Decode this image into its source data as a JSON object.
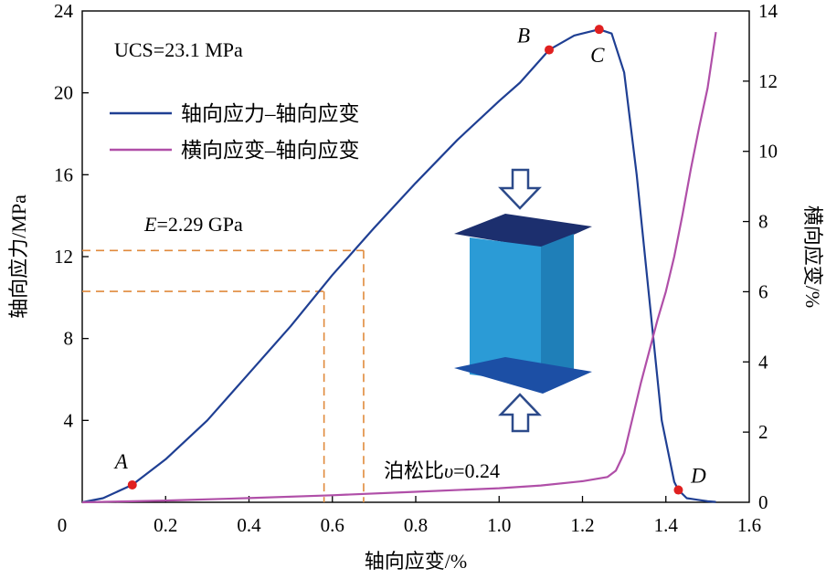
{
  "chart_data": {
    "type": "line",
    "xlabel": "轴向应变/%",
    "ylabel": "轴向应力/MPa",
    "y2label": "横向应变/%",
    "xlim": [
      0,
      1.6
    ],
    "ylim": [
      0,
      24
    ],
    "y2lim": [
      0,
      14
    ],
    "x_ticks": [
      "0",
      "0.2",
      "0.4",
      "0.6",
      "0.8",
      "1.0",
      "1.2",
      "1.4",
      "1.6"
    ],
    "y_ticks": [
      "4",
      "8",
      "12",
      "16",
      "20",
      "24"
    ],
    "y2_ticks": [
      "0",
      "2",
      "4",
      "6",
      "8",
      "10",
      "12",
      "14"
    ],
    "grid": false,
    "legend_position": "top-left",
    "series": [
      {
        "name": "轴向应力–轴向应变",
        "axis": "left",
        "color": "#1f3f93",
        "x": [
          0,
          0.05,
          0.12,
          0.2,
          0.3,
          0.4,
          0.5,
          0.6,
          0.7,
          0.8,
          0.9,
          1.0,
          1.05,
          1.12,
          1.18,
          1.24,
          1.27,
          1.3,
          1.33,
          1.36,
          1.39,
          1.42,
          1.43,
          1.45,
          1.5,
          1.52
        ],
        "y": [
          0,
          0.2,
          0.85,
          2.1,
          4.0,
          6.3,
          8.6,
          11.1,
          13.4,
          15.6,
          17.7,
          19.6,
          20.5,
          22.1,
          22.8,
          23.1,
          22.9,
          21.0,
          16.0,
          10.0,
          4.0,
          1.0,
          0.6,
          0.2,
          0.05,
          0.02
        ]
      },
      {
        "name": "横向应变–轴向应变",
        "axis": "right",
        "color": "#b04fa8",
        "x": [
          0,
          0.2,
          0.4,
          0.6,
          0.8,
          1.0,
          1.1,
          1.2,
          1.26,
          1.28,
          1.3,
          1.32,
          1.34,
          1.36,
          1.38,
          1.4,
          1.42,
          1.44,
          1.46,
          1.48,
          1.5,
          1.52
        ],
        "y": [
          0,
          0.05,
          0.12,
          0.2,
          0.3,
          0.4,
          0.48,
          0.6,
          0.72,
          0.9,
          1.4,
          2.4,
          3.4,
          4.3,
          5.2,
          6.0,
          7.0,
          8.2,
          9.5,
          10.7,
          11.8,
          13.4
        ]
      }
    ],
    "points": [
      {
        "label": "A",
        "x": 0.12,
        "y": 0.85
      },
      {
        "label": "B",
        "x": 1.12,
        "y": 22.1
      },
      {
        "label": "C",
        "x": 1.24,
        "y": 23.1
      },
      {
        "label": "D",
        "x": 1.43,
        "y": 0.6
      }
    ],
    "guides": [
      {
        "x": 0.58,
        "y": 10.3
      },
      {
        "x": 0.675,
        "y": 12.3
      }
    ],
    "annotations": {
      "ucs": "UCS=23.1 MPa",
      "modulus_symbol": "E",
      "modulus_value": "=2.29 GPa",
      "poisson_label": "泊松比",
      "poisson_symbol": "υ",
      "poisson_value": "=0.24"
    },
    "colors": {
      "guide": "#e08a3c",
      "point": "#e02020",
      "specimen": "#2b9bd6",
      "platen_top": "#1c2f6e",
      "platen_bottom": "#1c4fa5",
      "arrow": "#2c4a8a"
    }
  }
}
